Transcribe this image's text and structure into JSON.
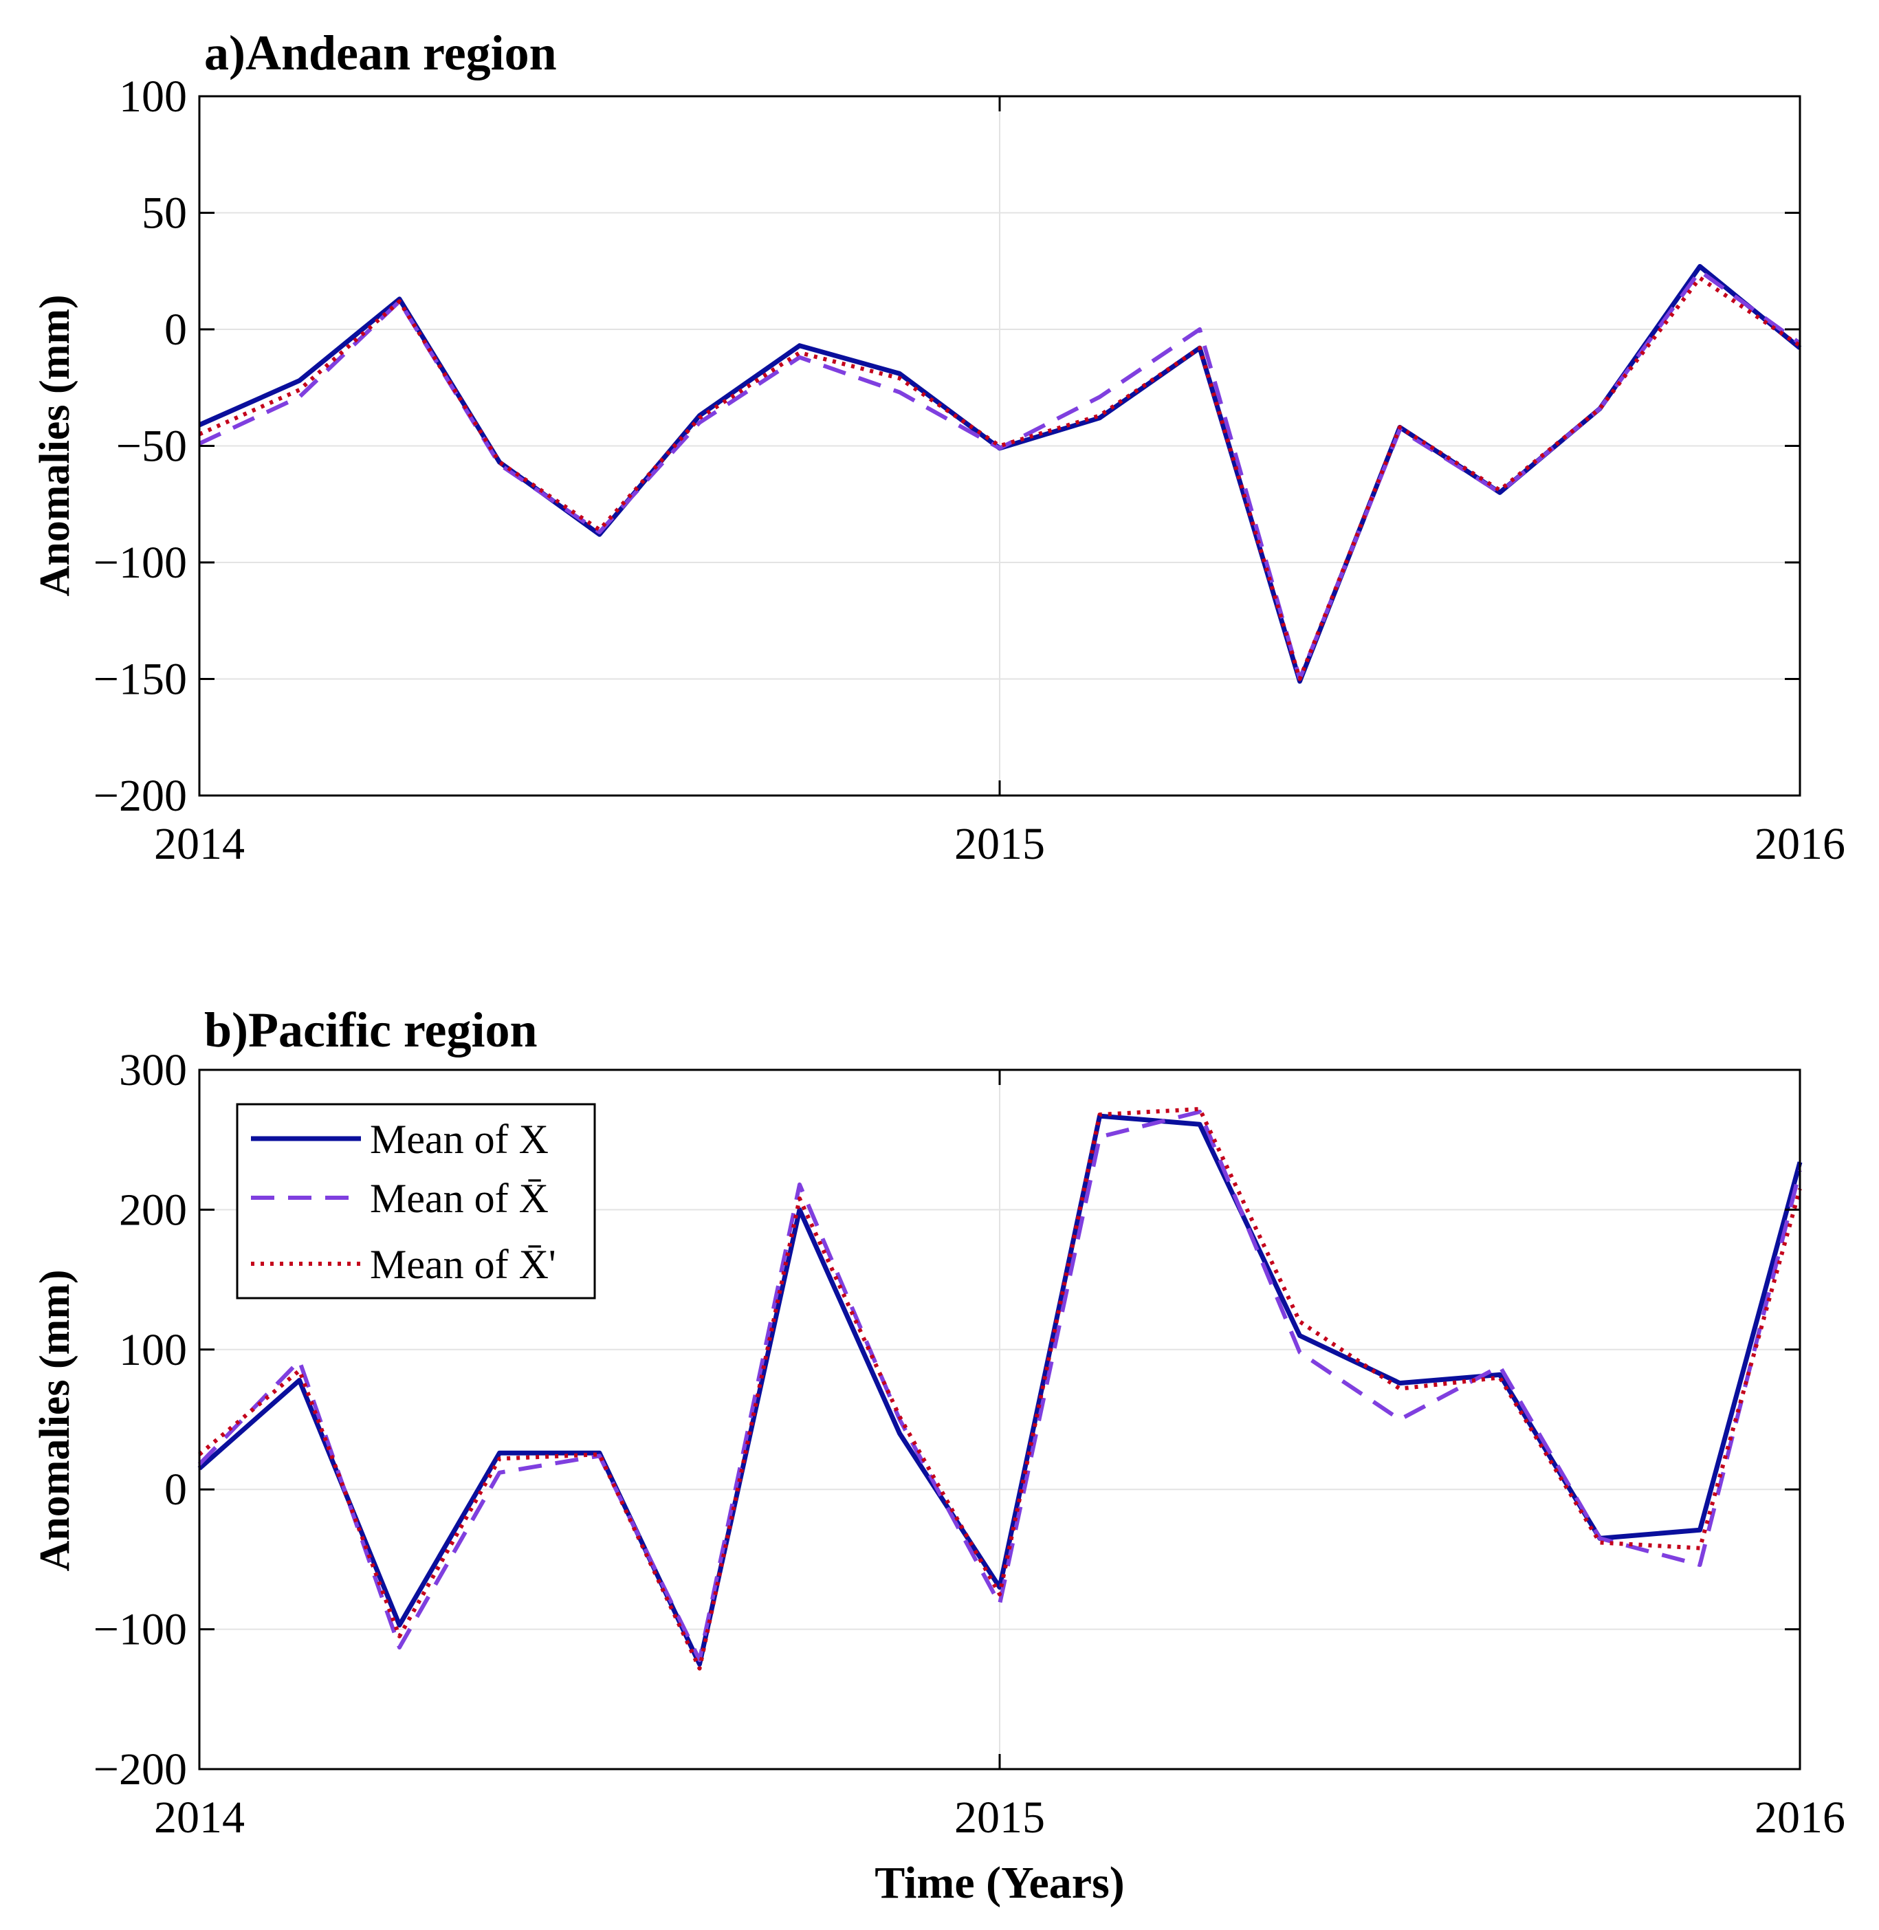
{
  "chart_data": [
    {
      "type": "line",
      "title": "a)Andean region",
      "xlabel": "",
      "ylabel": "Anomalies (mm)",
      "xlim": [
        2014,
        2016
      ],
      "ylim": [
        -200,
        100
      ],
      "xticks": [
        2014,
        2015,
        2016
      ],
      "xtick_labels": [
        "2014",
        "2015",
        "2016"
      ],
      "yticks": [
        -200,
        -150,
        -100,
        -50,
        0,
        50,
        100
      ],
      "ytick_labels": [
        "−200",
        "−150",
        "−100",
        "−50",
        "0",
        "50",
        "100"
      ],
      "grid": true,
      "x": [
        2014.0,
        2014.125,
        2014.25,
        2014.375,
        2014.5,
        2014.625,
        2014.75,
        2014.875,
        2015.0,
        2015.125,
        2015.25,
        2015.375,
        2015.5,
        2015.625,
        2015.75,
        2015.875,
        2016.0
      ],
      "series": [
        {
          "name": "Mean of X",
          "color": "#0a0f9c",
          "style": "solid",
          "values": [
            -41,
            -22,
            13,
            -57,
            -88,
            -37,
            -7,
            -19,
            -51,
            -38,
            -8,
            -151,
            -42,
            -70,
            -34,
            27,
            -8
          ]
        },
        {
          "name": "Mean of X̄",
          "color": "#7f3fdf",
          "style": "dashed",
          "values": [
            -49,
            -29,
            12,
            -58,
            -87,
            -40,
            -12,
            -27,
            -51,
            -29,
            0,
            -150,
            -43,
            -70,
            -34,
            25,
            -6
          ]
        },
        {
          "name": "Mean of X̄'",
          "color": "#c4001b",
          "style": "dotted",
          "values": [
            -45,
            -26,
            12,
            -57,
            -86,
            -38,
            -10,
            -21,
            -50,
            -37,
            -8,
            -150,
            -42,
            -69,
            -34,
            22,
            -7
          ]
        }
      ]
    },
    {
      "type": "line",
      "title": "b)Pacific region",
      "xlabel": "Time (Years)",
      "ylabel": "Anomalies (mm)",
      "xlim": [
        2014,
        2016
      ],
      "ylim": [
        -200,
        300
      ],
      "xticks": [
        2014,
        2015,
        2016
      ],
      "xtick_labels": [
        "2014",
        "2015",
        "2016"
      ],
      "yticks": [
        -200,
        -100,
        0,
        100,
        200,
        300
      ],
      "ytick_labels": [
        "−200",
        "−100",
        "0",
        "100",
        "200",
        "300"
      ],
      "grid": true,
      "legend": "top-left",
      "x": [
        2014.0,
        2014.125,
        2014.25,
        2014.375,
        2014.5,
        2014.625,
        2014.75,
        2014.875,
        2015.0,
        2015.125,
        2015.25,
        2015.375,
        2015.5,
        2015.625,
        2015.75,
        2015.875,
        2016.0
      ],
      "series": [
        {
          "name": "Mean of X",
          "color": "#0a0f9c",
          "style": "solid",
          "values": [
            15,
            78,
            -97,
            26,
            26,
            -125,
            200,
            40,
            -70,
            267,
            261,
            110,
            76,
            82,
            -35,
            -29,
            234
          ]
        },
        {
          "name": "Mean of X̄",
          "color": "#7f3fdf",
          "style": "dashed",
          "values": [
            18,
            92,
            -113,
            12,
            24,
            -122,
            218,
            50,
            -82,
            252,
            270,
            98,
            50,
            88,
            -35,
            -54,
            228
          ]
        },
        {
          "name": "Mean of X̄'",
          "color": "#c4001b",
          "style": "dotted",
          "values": [
            25,
            85,
            -105,
            22,
            25,
            -128,
            208,
            52,
            -75,
            268,
            272,
            120,
            72,
            80,
            -38,
            -42,
            215
          ]
        }
      ]
    }
  ]
}
